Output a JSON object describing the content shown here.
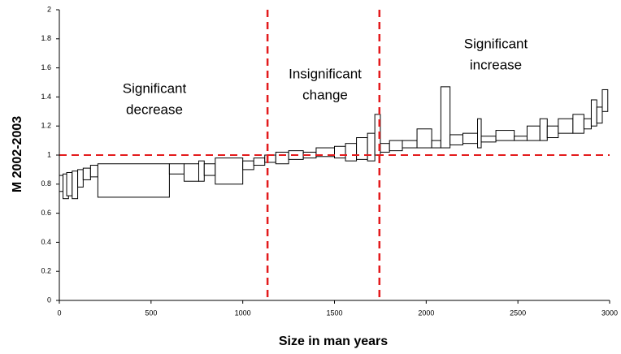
{
  "chart_data": {
    "type": "range-boxes",
    "x_label": "Size in man years",
    "y_label": "M 2002-2003",
    "xlim": [
      0,
      3000
    ],
    "ylim": [
      0,
      2
    ],
    "xticks": [
      0,
      500,
      1000,
      1500,
      2000,
      2500,
      3000
    ],
    "yticks": [
      0,
      0.2,
      0.4,
      0.6,
      0.8,
      1,
      1.2,
      1.4,
      1.6,
      1.8,
      2
    ],
    "hline": 1,
    "vlines": [
      1135,
      1745
    ],
    "line_color": "#e31a1c",
    "annotations": [
      [
        "Significant",
        "decrease"
      ],
      [
        "Insignificant",
        "change"
      ],
      [
        "Significant",
        "increase"
      ]
    ],
    "boxes": {
      "x0": [
        0,
        20,
        40,
        70,
        100,
        130,
        170,
        210,
        600,
        680,
        760,
        790,
        850,
        1000,
        1060,
        1120,
        1180,
        1250,
        1330,
        1400,
        1500,
        1560,
        1620,
        1680,
        1720,
        1750,
        1800,
        1870,
        1950,
        2030,
        2080,
        2130,
        2200,
        2280,
        2300,
        2380,
        2480,
        2550,
        2620,
        2660,
        2720,
        2800,
        2860,
        2900,
        2930,
        2960
      ],
      "x1": [
        20,
        50,
        70,
        100,
        130,
        170,
        210,
        600,
        680,
        760,
        790,
        850,
        1000,
        1060,
        1120,
        1180,
        1250,
        1330,
        1400,
        1500,
        1560,
        1620,
        1680,
        1720,
        1750,
        1800,
        1870,
        1950,
        2030,
        2080,
        2130,
        2200,
        2280,
        2300,
        2380,
        2480,
        2550,
        2620,
        2660,
        2720,
        2800,
        2860,
        2900,
        2930,
        2960,
        2990
      ],
      "low": [
        0.75,
        0.7,
        0.72,
        0.7,
        0.78,
        0.83,
        0.85,
        0.71,
        0.87,
        0.82,
        0.82,
        0.86,
        0.8,
        0.9,
        0.93,
        0.95,
        0.94,
        0.97,
        0.98,
        0.99,
        0.98,
        0.96,
        0.97,
        0.96,
        1.0,
        1.02,
        1.03,
        1.05,
        1.05,
        1.05,
        1.05,
        1.07,
        1.08,
        1.05,
        1.09,
        1.1,
        1.1,
        1.1,
        1.1,
        1.12,
        1.15,
        1.15,
        1.18,
        1.2,
        1.22,
        1.3
      ],
      "high": [
        0.86,
        0.87,
        0.88,
        0.89,
        0.9,
        0.91,
        0.93,
        0.94,
        0.94,
        0.94,
        0.96,
        0.94,
        0.98,
        0.96,
        0.98,
        1.0,
        1.02,
        1.03,
        1.02,
        1.05,
        1.06,
        1.08,
        1.12,
        1.15,
        1.28,
        1.08,
        1.1,
        1.1,
        1.18,
        1.1,
        1.47,
        1.14,
        1.15,
        1.25,
        1.13,
        1.17,
        1.13,
        1.2,
        1.25,
        1.2,
        1.25,
        1.28,
        1.25,
        1.38,
        1.33,
        1.45
      ]
    }
  }
}
